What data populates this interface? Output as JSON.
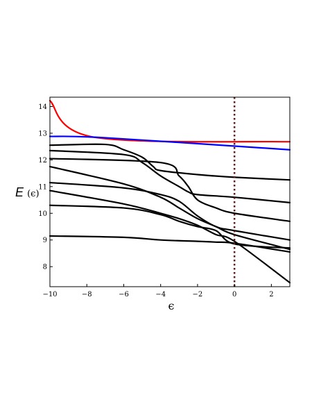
{
  "chart_data": {
    "type": "line",
    "title": "",
    "xlabel": "ϵ",
    "ylabel_main": "E",
    "ylabel_arg": "(ϵ)",
    "xlim": [
      -10,
      3
    ],
    "ylim": [
      7.25,
      14.35
    ],
    "x_ticks": [
      -10,
      -8,
      -6,
      -4,
      -2,
      0,
      2
    ],
    "x_tick_labels": [
      "−10",
      "−8",
      "−6",
      "−4",
      "−2",
      "0",
      "2"
    ],
    "y_ticks": [
      8,
      9,
      10,
      11,
      12,
      13,
      14
    ],
    "y_tick_labels": [
      "8",
      "9",
      "10",
      "11",
      "12",
      "13",
      "14"
    ],
    "grid": false,
    "vline": {
      "x": 0,
      "style": "dotted",
      "color": "#5a1a1a"
    },
    "series": [
      {
        "color": "#ff0000",
        "x": [
          -10,
          -7.6,
          3
        ],
        "y": [
          14.22,
          12.85,
          12.68
        ]
      },
      {
        "color": "#0000ff",
        "x": [
          -10,
          -7.0,
          3
        ],
        "y": [
          12.88,
          12.83,
          12.38
        ]
      },
      {
        "color": "#000000",
        "x": [
          -10,
          -7,
          -6,
          -5,
          -4.4,
          -4,
          -2,
          0,
          3
        ],
        "y": [
          12.55,
          12.58,
          12.38,
          12.1,
          11.75,
          11.6,
          11.45,
          11.35,
          11.25
        ]
      },
      {
        "color": "#000000",
        "x": [
          -10,
          -6,
          -5,
          -4,
          -3,
          -2.5,
          -2,
          0,
          3
        ],
        "y": [
          12.35,
          12.2,
          11.9,
          11.4,
          11.0,
          10.8,
          10.7,
          10.6,
          10.4
        ]
      },
      {
        "color": "#000000",
        "x": [
          -10,
          -4,
          -3,
          -2.5,
          -2,
          -1,
          0,
          3
        ],
        "y": [
          12.05,
          11.9,
          11.4,
          11.0,
          10.5,
          10.2,
          10.0,
          9.7
        ]
      },
      {
        "color": "#000000",
        "x": [
          -10,
          -6,
          -4,
          -3,
          -2,
          -1,
          0,
          3
        ],
        "y": [
          11.75,
          11.1,
          10.6,
          10.2,
          9.8,
          9.5,
          9.2,
          8.65
        ]
      },
      {
        "color": "#000000",
        "x": [
          -10,
          -6,
          -4,
          -3,
          -2,
          -1,
          0,
          3
        ],
        "y": [
          11.15,
          10.95,
          10.7,
          10.45,
          9.9,
          9.5,
          9.35,
          9.0
        ]
      },
      {
        "color": "#000000",
        "x": [
          -10,
          -6,
          -4,
          -3,
          -2,
          -1,
          0,
          3
        ],
        "y": [
          10.85,
          10.35,
          10.0,
          9.8,
          9.55,
          9.2,
          8.95,
          7.4
        ]
      },
      {
        "color": "#000000",
        "x": [
          -10,
          -6,
          -4,
          -3,
          -2,
          -1,
          0,
          3
        ],
        "y": [
          10.3,
          10.2,
          9.95,
          9.7,
          9.5,
          9.35,
          8.85,
          8.7
        ]
      },
      {
        "color": "#000000",
        "x": [
          -10,
          -6,
          -4,
          -2,
          -1,
          0,
          3
        ],
        "y": [
          9.15,
          9.1,
          9.0,
          8.95,
          8.92,
          8.88,
          8.55
        ]
      }
    ]
  }
}
